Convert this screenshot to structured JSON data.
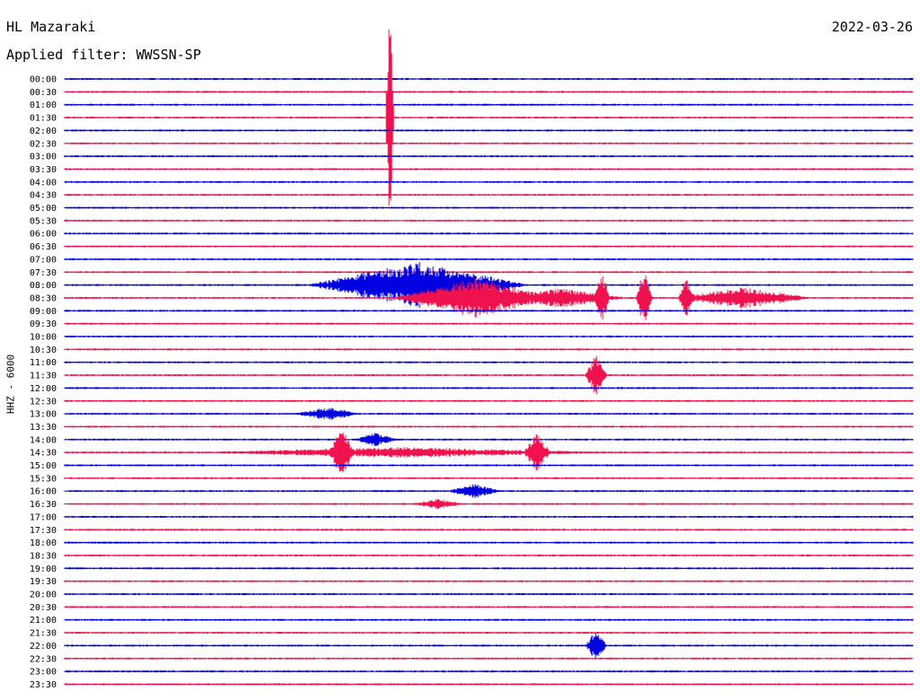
{
  "header": {
    "station": "HL Mazaraki",
    "date": "2022-03-26",
    "filter": "Applied filter: WWSSN-SP",
    "channel": "HHZ  -  6000"
  },
  "colors": {
    "even": "#0000e0",
    "odd": "#f0124e"
  },
  "chart_data": {
    "type": "line",
    "title": "",
    "xlabel": "",
    "ylabel": "HHZ  -  6000",
    "rows": [
      "00:00",
      "00:30",
      "01:00",
      "01:30",
      "02:00",
      "02:30",
      "03:00",
      "03:30",
      "04:00",
      "04:30",
      "05:00",
      "05:30",
      "06:00",
      "06:30",
      "07:00",
      "07:30",
      "08:00",
      "08:30",
      "09:00",
      "09:30",
      "10:00",
      "10:30",
      "11:00",
      "11:30",
      "12:00",
      "12:30",
      "13:00",
      "13:30",
      "14:00",
      "14:30",
      "15:00",
      "15:30",
      "16:00",
      "16:30",
      "17:00",
      "17:30",
      "18:00",
      "18:30",
      "19:00",
      "19:30",
      "20:00",
      "20:30",
      "21:00",
      "21:30",
      "22:00",
      "22:30",
      "23:00",
      "23:30"
    ],
    "trace_minutes": 30,
    "grid": false,
    "events": [
      {
        "row": 3,
        "minute": 11.5,
        "amp": 160,
        "dur": 0.15
      },
      {
        "row": 16,
        "minute": 12.5,
        "amp": 26,
        "dur": 4
      },
      {
        "row": 17,
        "minute": 14.5,
        "amp": 22,
        "dur": 3
      },
      {
        "row": 17,
        "minute": 17.5,
        "amp": 11,
        "dur": 2.5
      },
      {
        "row": 17,
        "minute": 19.0,
        "amp": 30,
        "dur": 0.3
      },
      {
        "row": 17,
        "minute": 20.5,
        "amp": 35,
        "dur": 0.3
      },
      {
        "row": 17,
        "minute": 22.0,
        "amp": 28,
        "dur": 0.3
      },
      {
        "row": 17,
        "minute": 24.0,
        "amp": 12,
        "dur": 2.5
      },
      {
        "row": 23,
        "minute": 18.8,
        "amp": 24,
        "dur": 0.4
      },
      {
        "row": 26,
        "minute": 9.3,
        "amp": 8,
        "dur": 1.2
      },
      {
        "row": 28,
        "minute": 11.0,
        "amp": 8,
        "dur": 0.8
      },
      {
        "row": 29,
        "minute": 9.8,
        "amp": 28,
        "dur": 0.5
      },
      {
        "row": 29,
        "minute": 12.0,
        "amp": 6,
        "dur": 8
      },
      {
        "row": 29,
        "minute": 16.7,
        "amp": 22,
        "dur": 0.5
      },
      {
        "row": 32,
        "minute": 14.5,
        "amp": 9,
        "dur": 1
      },
      {
        "row": 33,
        "minute": 13.2,
        "amp": 6,
        "dur": 1
      },
      {
        "row": 44,
        "minute": 18.8,
        "amp": 18,
        "dur": 0.4
      }
    ]
  }
}
